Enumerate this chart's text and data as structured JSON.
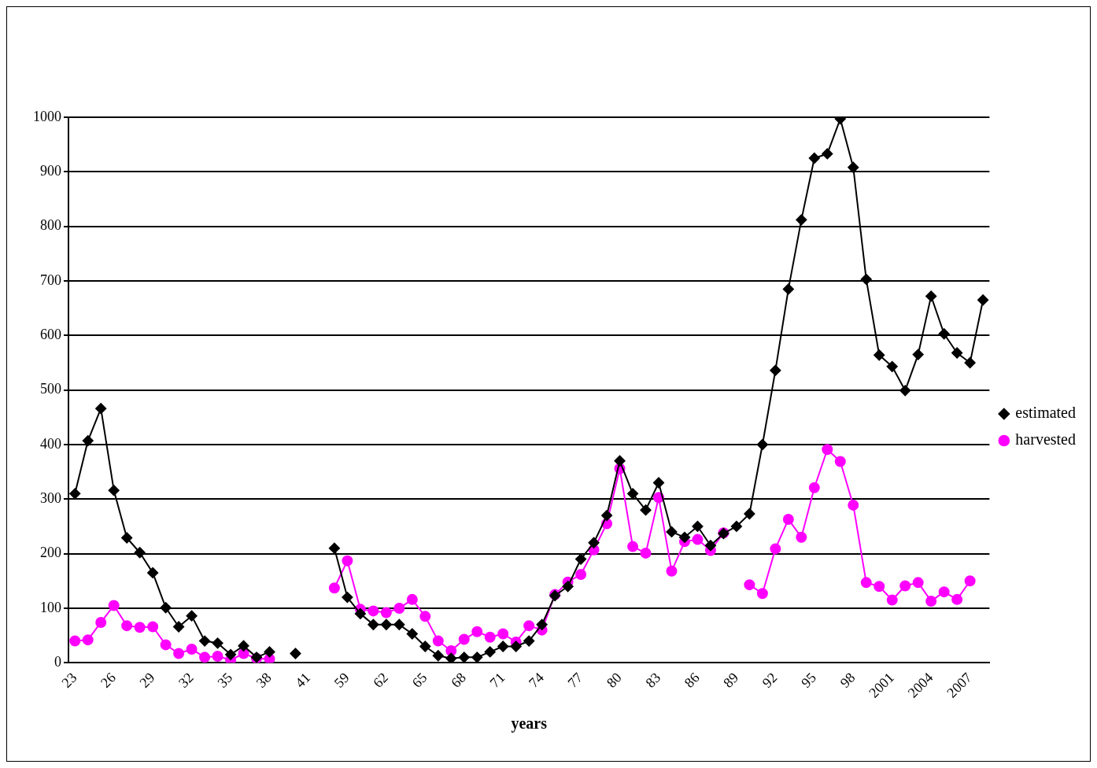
{
  "chart_data": {
    "type": "line",
    "xlabel": "years",
    "categories": [
      "23",
      null,
      null,
      "26",
      null,
      null,
      "29",
      null,
      null,
      "32",
      null,
      null,
      "35",
      null,
      null,
      "38",
      null,
      null,
      "41",
      null,
      null,
      "59",
      null,
      null,
      "62",
      null,
      null,
      "65",
      null,
      null,
      "68",
      null,
      null,
      "71",
      null,
      null,
      "74",
      null,
      null,
      "77",
      null,
      null,
      "80",
      null,
      null,
      "83",
      null,
      null,
      "86",
      null,
      null,
      "89",
      null,
      null,
      "92",
      null,
      null,
      "95",
      null,
      null,
      "98",
      null,
      null,
      "2001",
      null,
      null,
      "2004",
      null,
      null,
      "2007",
      null
    ],
    "series": [
      {
        "name": "estimated",
        "color": "#000000",
        "marker": "diamond",
        "values": [
          310,
          407,
          466,
          316,
          229,
          202,
          165,
          101,
          66,
          86,
          40,
          36,
          15,
          31,
          10,
          20,
          null,
          17,
          null,
          null,
          210,
          120,
          90,
          70,
          70,
          70,
          53,
          30,
          13,
          8,
          10,
          10,
          20,
          30,
          30,
          40,
          70,
          123,
          140,
          190,
          220,
          270,
          370,
          310,
          280,
          330,
          240,
          230,
          250,
          215,
          237,
          250,
          273,
          400,
          536,
          685,
          812,
          925,
          933,
          997,
          908,
          703,
          564,
          543,
          499,
          565,
          672,
          603,
          568,
          550,
          665
        ]
      },
      {
        "name": "harvested",
        "color": "#ff00ff",
        "marker": "circle",
        "values": [
          40,
          42,
          74,
          105,
          68,
          65,
          66,
          33,
          17,
          25,
          10,
          12,
          5,
          17,
          8,
          7,
          null,
          null,
          null,
          null,
          137,
          187,
          98,
          95,
          92,
          100,
          116,
          85,
          40,
          22,
          43,
          57,
          47,
          53,
          38,
          68,
          60,
          125,
          148,
          162,
          207,
          255,
          356,
          213,
          201,
          303,
          168,
          222,
          226,
          206,
          238,
          null,
          143,
          127,
          209,
          263,
          230,
          321,
          391,
          369,
          289,
          147,
          140,
          115,
          141,
          147,
          113,
          130,
          116,
          150,
          null
        ]
      }
    ],
    "ylim": [
      0,
      1000
    ],
    "yticks": [
      0,
      100,
      200,
      300,
      400,
      500,
      600,
      700,
      800,
      900,
      1000
    ],
    "grid": "y",
    "legend": "right",
    "line_style": "solid"
  }
}
